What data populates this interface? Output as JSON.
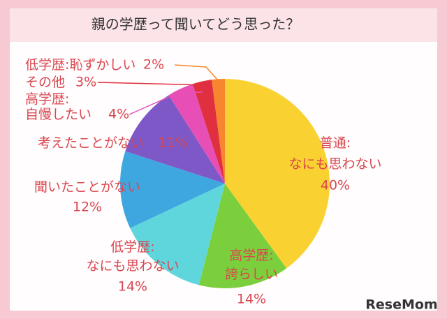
{
  "chart_data": {
    "type": "pie",
    "title": "親の学歴って聞いてどう思った？",
    "categories": [
      "普通:\nなにも思わない",
      "高学歴:\n誇らしい",
      "低学歴:\nなにも思わない",
      "聞いたことがない",
      "考えたことがない",
      "高学歴:\n自慢したい",
      "その他",
      "低学歴:恥ずかしい"
    ],
    "values": [
      40,
      14,
      14,
      12,
      11,
      4,
      3,
      2
    ],
    "value_labels": [
      "40%",
      "14%",
      "14%",
      "12%",
      "11%",
      "4%",
      "3%",
      "2%"
    ],
    "colors": [
      "#f9d232",
      "#7ccf3c",
      "#5fd6dc",
      "#3fa7e0",
      "#7f58c8",
      "#e84fb6",
      "#e0303f",
      "#f7862e"
    ],
    "watermark": "ReseMom"
  }
}
